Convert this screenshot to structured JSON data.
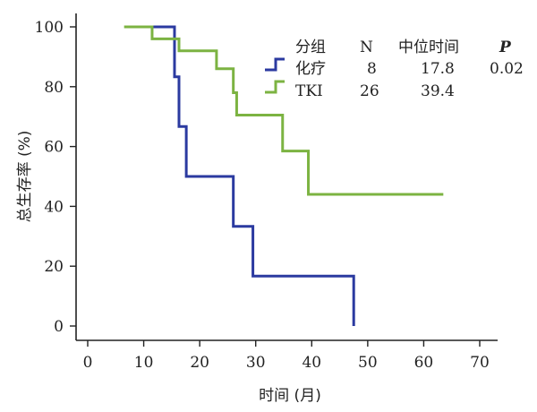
{
  "chart_data": {
    "type": "line",
    "xlabel": "时间 (月)",
    "ylabel": "总生存率 (%)",
    "xlim": [
      0,
      70
    ],
    "ylim": [
      0,
      100
    ],
    "x_ticks": [
      "0",
      "10",
      "20",
      "30",
      "40",
      "50",
      "60",
      "70"
    ],
    "y_ticks": [
      "0",
      "20",
      "40",
      "60",
      "80",
      "100"
    ],
    "grid": false,
    "legend_position": "top-right",
    "legend_header": {
      "group": "分组",
      "n": "N",
      "median": "中位时间",
      "p": "P"
    },
    "p_value": "0.02",
    "series": [
      {
        "name": "化疗",
        "n": "8",
        "median": "17.8",
        "color": "#2b3aa0",
        "step_points": [
          [
            11,
            100
          ],
          [
            15.5,
            100
          ],
          [
            15.5,
            83.3
          ],
          [
            16.3,
            83.3
          ],
          [
            16.3,
            66.7
          ],
          [
            17.6,
            66.7
          ],
          [
            17.6,
            50
          ],
          [
            26,
            50
          ],
          [
            26,
            33.3
          ],
          [
            29.5,
            33.3
          ],
          [
            29.5,
            16.7
          ],
          [
            47.5,
            16.7
          ],
          [
            47.5,
            0
          ]
        ]
      },
      {
        "name": "TKI",
        "n": "26",
        "median": "39.4",
        "color": "#7cb342",
        "step_points": [
          [
            6.5,
            100
          ],
          [
            11.5,
            100
          ],
          [
            11.5,
            96
          ],
          [
            16.3,
            96
          ],
          [
            16.3,
            92
          ],
          [
            23,
            92
          ],
          [
            23,
            86
          ],
          [
            26,
            86
          ],
          [
            26,
            78
          ],
          [
            26.6,
            78
          ],
          [
            26.6,
            70.5
          ],
          [
            34.8,
            70.5
          ],
          [
            34.8,
            58.5
          ],
          [
            39.4,
            58.5
          ],
          [
            39.4,
            44
          ],
          [
            63.5,
            44
          ]
        ]
      }
    ]
  }
}
